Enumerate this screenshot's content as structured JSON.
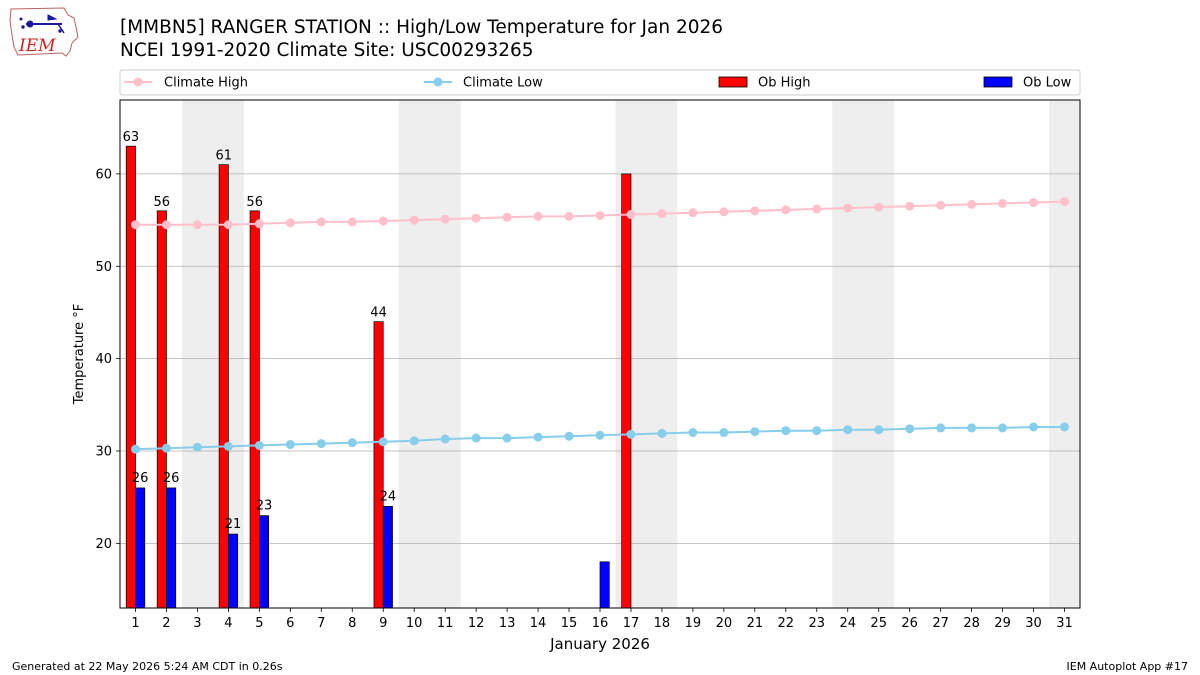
{
  "title": "[MMBN5] RANGER STATION :: High/Low Temperature for Jan 2026",
  "subtitle": "NCEI 1991-2020 Climate Site: USC00293265",
  "logo_text": "IEM",
  "footer_left": "Generated at 22 May 2026 5:24 AM CDT in 0.26s",
  "footer_right": "IEM Autoplot App #17",
  "colors": {
    "climate_high": "#ffc0cb",
    "climate_low": "#87ceeb",
    "ob_high": "#ff0000",
    "ob_low": "#0000ff",
    "weekend_shade": "#eeeeee",
    "grid": "#b0b0b0"
  },
  "chart_data": {
    "type": "bar",
    "xlabel": "January 2026",
    "ylabel": "Temperature °F",
    "ylim": [
      13,
      68
    ],
    "yticks": [
      20,
      30,
      40,
      50,
      60
    ],
    "x": [
      1,
      2,
      3,
      4,
      5,
      6,
      7,
      8,
      9,
      10,
      11,
      12,
      13,
      14,
      15,
      16,
      17,
      18,
      19,
      20,
      21,
      22,
      23,
      24,
      25,
      26,
      27,
      28,
      29,
      30,
      31
    ],
    "weekend_spans": [
      [
        3,
        4
      ],
      [
        10,
        11
      ],
      [
        17,
        18
      ],
      [
        24,
        25
      ],
      [
        31,
        31
      ]
    ],
    "grid": true,
    "legend_position": "top",
    "series": [
      {
        "name": "Climate High",
        "type": "line",
        "values": [
          54.5,
          54.5,
          54.5,
          54.5,
          54.6,
          54.7,
          54.8,
          54.8,
          54.9,
          55.0,
          55.1,
          55.2,
          55.3,
          55.4,
          55.4,
          55.5,
          55.6,
          55.7,
          55.8,
          55.9,
          56.0,
          56.1,
          56.2,
          56.3,
          56.4,
          56.5,
          56.6,
          56.7,
          56.8,
          56.9,
          57.0
        ]
      },
      {
        "name": "Climate Low",
        "type": "line",
        "values": [
          30.2,
          30.3,
          30.4,
          30.5,
          30.6,
          30.7,
          30.8,
          30.9,
          31.0,
          31.1,
          31.3,
          31.4,
          31.4,
          31.5,
          31.6,
          31.7,
          31.8,
          31.9,
          32.0,
          32.0,
          32.1,
          32.2,
          32.2,
          32.3,
          32.3,
          32.4,
          32.5,
          32.5,
          32.5,
          32.6,
          32.6
        ]
      },
      {
        "name": "Ob High",
        "type": "bar",
        "values": [
          63,
          56,
          null,
          61,
          56,
          null,
          null,
          null,
          44,
          null,
          null,
          null,
          null,
          null,
          null,
          null,
          60,
          null,
          null,
          null,
          null,
          null,
          null,
          null,
          null,
          null,
          null,
          null,
          null,
          null,
          null
        ],
        "labels": [
          "63",
          "56",
          null,
          "61",
          "56",
          null,
          null,
          null,
          "44",
          null,
          null,
          null,
          null,
          null,
          null,
          null,
          null,
          null,
          null,
          null,
          null,
          null,
          null,
          null,
          null,
          null,
          null,
          null,
          null,
          null,
          null
        ]
      },
      {
        "name": "Ob Low",
        "type": "bar",
        "values": [
          26,
          26,
          null,
          21,
          23,
          null,
          null,
          null,
          24,
          null,
          null,
          null,
          null,
          null,
          null,
          18,
          null,
          null,
          null,
          null,
          null,
          null,
          null,
          null,
          null,
          null,
          null,
          null,
          null,
          null,
          null
        ],
        "labels": [
          "26",
          "26",
          null,
          "21",
          "23",
          null,
          null,
          null,
          "24",
          null,
          null,
          null,
          null,
          null,
          null,
          null,
          null,
          null,
          null,
          null,
          null,
          null,
          null,
          null,
          null,
          null,
          null,
          null,
          null,
          null,
          null
        ]
      }
    ]
  }
}
